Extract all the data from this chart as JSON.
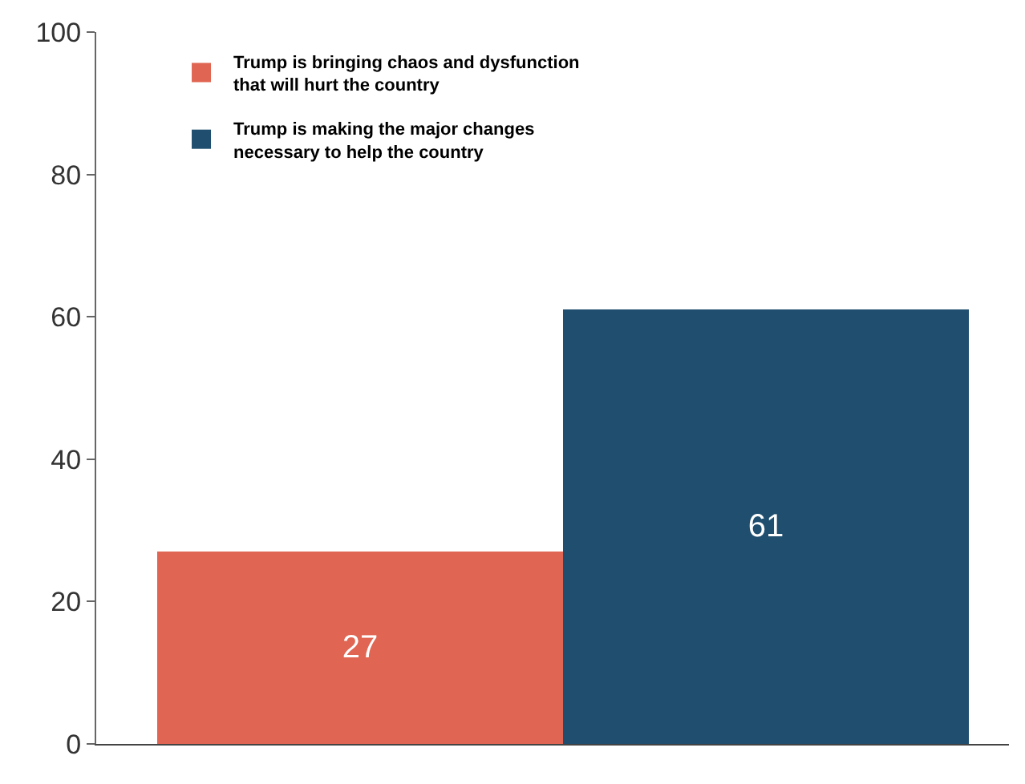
{
  "chart_data": {
    "type": "bar",
    "categories": [
      null,
      null
    ],
    "series": [
      {
        "name": "Trump is bringing chaos and dysfunction that will hurt the country",
        "color": "#e06552",
        "values": [
          27,
          null
        ]
      },
      {
        "name": "Trump is making the major changes necessary to help the country",
        "color": "#1f4e6e",
        "values": [
          null,
          61
        ]
      }
    ],
    "ylim": [
      0,
      100
    ],
    "yticks": [
      0,
      20,
      40,
      60,
      80,
      100
    ],
    "data_labels": true,
    "legend": "top"
  }
}
